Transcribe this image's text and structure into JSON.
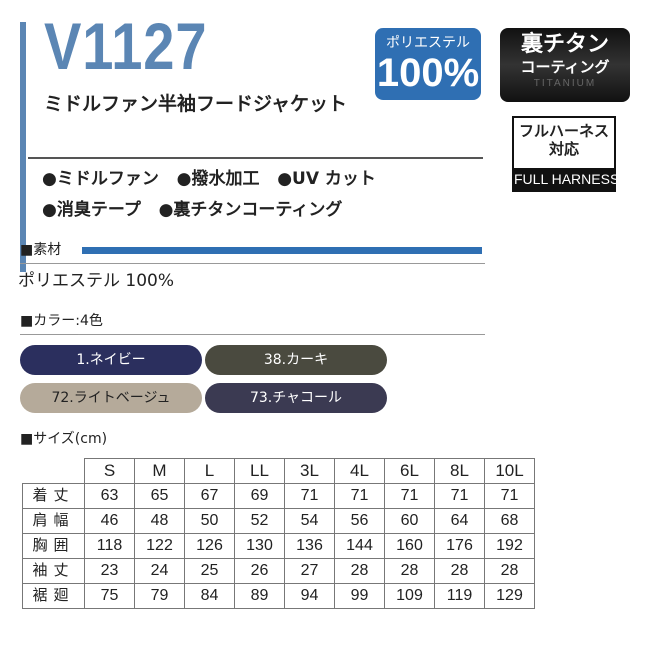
{
  "header": {
    "model": "V1127",
    "subtitle": "ミドルファン半袖フードジャケット"
  },
  "badges": {
    "polyester": {
      "top": "ポリエステル",
      "value": "100%"
    },
    "titanium": {
      "title": "裏チタン",
      "sub": "コーティング",
      "watermark": "TITANIUM"
    },
    "harness": {
      "line1": "フルハーネス",
      "line2": "対応",
      "label": "FULL HARNESS"
    }
  },
  "features": {
    "row1": [
      "●ミドルファン",
      "●撥水加工",
      "●UV カット"
    ],
    "row2": [
      "●消臭テープ",
      "●裏チタンコーティング"
    ]
  },
  "material": {
    "heading": "■素材",
    "value": "ポリエステル 100%"
  },
  "colors": {
    "heading": "■カラー:4色",
    "items": [
      {
        "label": "1.ネイビー",
        "color": "#2b2f5e"
      },
      {
        "label": "38.カーキ",
        "color": "#4a4a3f"
      },
      {
        "label": "72.ライトベージュ",
        "color": "#b5aa9a"
      },
      {
        "label": "73.チャコール",
        "color": "#3b3a52"
      }
    ]
  },
  "sizes": {
    "heading": "■サイズ(cm)",
    "columns": [
      "S",
      "M",
      "L",
      "LL",
      "3L",
      "4L",
      "6L",
      "8L",
      "10L"
    ],
    "rows": [
      {
        "label": "着丈",
        "values": [
          "63",
          "65",
          "67",
          "69",
          "71",
          "71",
          "71",
          "71",
          "71"
        ]
      },
      {
        "label": "肩幅",
        "values": [
          "46",
          "48",
          "50",
          "52",
          "54",
          "56",
          "60",
          "64",
          "68"
        ]
      },
      {
        "label": "胸囲",
        "values": [
          "118",
          "122",
          "126",
          "130",
          "136",
          "144",
          "160",
          "176",
          "192"
        ]
      },
      {
        "label": "袖丈",
        "values": [
          "23",
          "24",
          "25",
          "26",
          "27",
          "28",
          "28",
          "28",
          "28"
        ]
      },
      {
        "label": "裾廻",
        "values": [
          "75",
          "79",
          "84",
          "89",
          "94",
          "99",
          "109",
          "119",
          "129"
        ]
      }
    ]
  }
}
